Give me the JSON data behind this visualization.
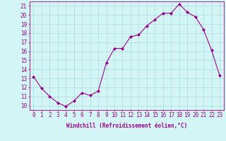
{
  "x": [
    0,
    1,
    2,
    3,
    4,
    5,
    6,
    7,
    8,
    9,
    10,
    11,
    12,
    13,
    14,
    15,
    16,
    17,
    18,
    19,
    20,
    21,
    22,
    23
  ],
  "y": [
    13.2,
    11.9,
    11.0,
    10.3,
    9.9,
    10.5,
    11.4,
    11.1,
    11.6,
    14.7,
    16.3,
    16.3,
    17.6,
    17.8,
    18.8,
    19.5,
    20.2,
    20.2,
    21.2,
    20.3,
    19.8,
    18.4,
    16.1,
    13.3
  ],
  "line_color": "#990099",
  "marker": "D",
  "marker_size": 2.0,
  "bg_color": "#d4f5f5",
  "grid_color": "#aadddd",
  "xlabel": "Windchill (Refroidissement éolien,°C)",
  "xlabel_color": "#990099",
  "ylabel_ticks": [
    10,
    11,
    12,
    13,
    14,
    15,
    16,
    17,
    18,
    19,
    20,
    21
  ],
  "xlim": [
    -0.5,
    23.5
  ],
  "ylim": [
    9.5,
    21.5
  ],
  "tick_color": "#990099",
  "label_fontsize": 5.5,
  "tick_fontsize": 5.5,
  "spine_color": "#990099",
  "linewidth": 0.8
}
